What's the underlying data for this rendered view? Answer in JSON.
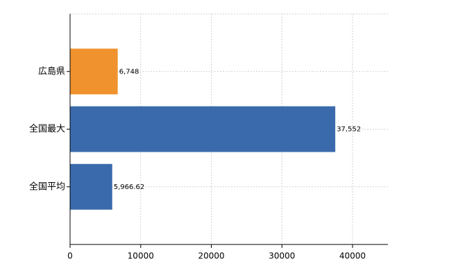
{
  "chart_data": {
    "type": "barh",
    "categories": [
      "広島県",
      "全国最大",
      "全国平均"
    ],
    "values": [
      6748,
      37552,
      5966.62
    ],
    "value_labels": [
      "6,748",
      "37,552",
      "5,966.62"
    ],
    "colors": [
      "#f0922e",
      "#3a6aab",
      "#3a6aab"
    ],
    "xlim": [
      0,
      45000
    ],
    "xticks": [
      0,
      10000,
      20000,
      30000,
      40000
    ],
    "grid": true
  }
}
